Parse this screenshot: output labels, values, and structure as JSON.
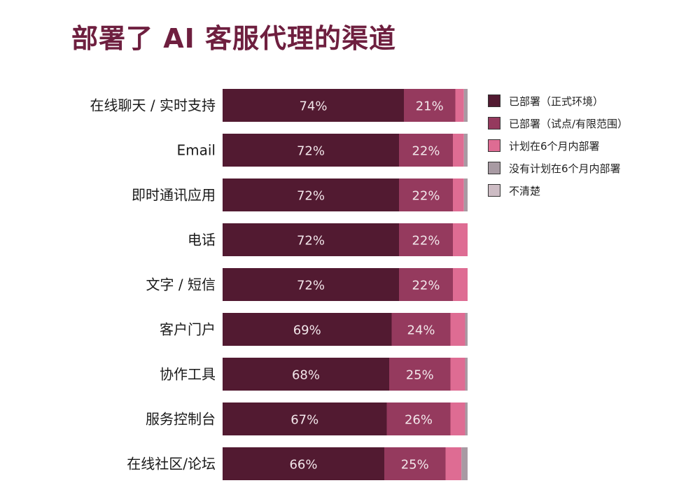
{
  "chart_data": {
    "type": "bar",
    "orientation": "horizontal",
    "stacked": true,
    "title": "部署了 AI 客服代理的渠道",
    "categories": [
      "在线聊天 / 实时支持",
      "Email",
      "即时通讯应用",
      "电话",
      "文字 / 短信",
      "客户门户",
      "协作工具",
      "服务控制台",
      "在线社区/论坛"
    ],
    "series": [
      {
        "name": "已部署（正式环境）",
        "color": "#521a31",
        "values": [
          74,
          72,
          72,
          72,
          72,
          69,
          68,
          67,
          66
        ],
        "labels": [
          "74%",
          "72%",
          "72%",
          "72%",
          "72%",
          "69%",
          "68%",
          "67%",
          "66%"
        ]
      },
      {
        "name": "已部署（试点/有限范围）",
        "color": "#953a5e",
        "values": [
          21,
          22,
          22,
          22,
          22,
          24,
          25,
          26,
          25
        ],
        "labels": [
          "21%",
          "22%",
          "22%",
          "22%",
          "22%",
          "24%",
          "25%",
          "26%",
          "25%"
        ]
      },
      {
        "name": "计划在6个月内部署",
        "color": "#de6c93",
        "values": [
          3.5,
          4.5,
          4.5,
          6,
          6,
          6,
          6,
          6,
          6.5
        ],
        "labels": []
      },
      {
        "name": "没有计划在6个月内部署",
        "color": "#a89aa3",
        "values": [
          1.5,
          1.5,
          1.5,
          0,
          0,
          1,
          1,
          1,
          2.5
        ],
        "labels": []
      },
      {
        "name": "不清楚",
        "color": "#cdbcc4",
        "values": [
          0,
          0,
          0,
          0,
          0,
          0,
          0,
          0,
          0
        ],
        "labels": []
      }
    ],
    "xlim": [
      0,
      100
    ],
    "grid": false,
    "legend": "right"
  }
}
